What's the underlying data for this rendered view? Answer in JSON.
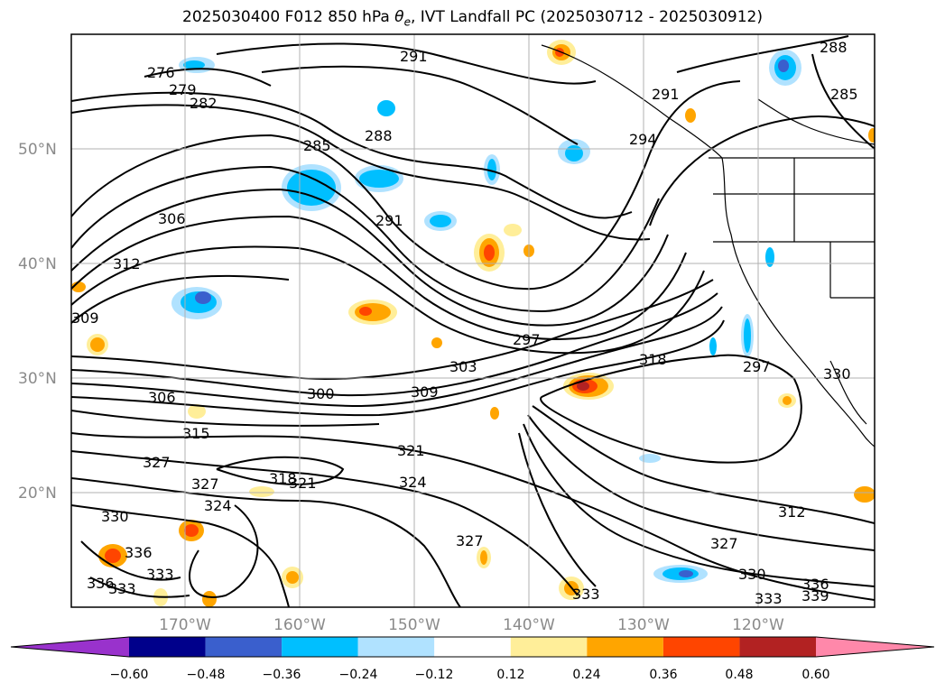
{
  "figure": {
    "title_prefix": "2025030400 F012 850 hPa ",
    "title_symbol": "θ",
    "title_subscript": "e",
    "title_suffix": ", IVT Landfall PC (2025030712 - 2025030912)"
  },
  "map": {
    "lat_labels": [
      "50°N",
      "40°N",
      "30°N",
      "20°N"
    ],
    "lon_labels": [
      "170°W",
      "160°W",
      "150°W",
      "140°W",
      "130°W",
      "120°W"
    ],
    "gridlines": true,
    "land_outline": true
  },
  "contour_labels": [
    "276",
    "279",
    "282",
    "285",
    "288",
    "291",
    "291",
    "294",
    "291",
    "288",
    "285",
    "306",
    "312",
    "309",
    "297",
    "303",
    "309",
    "300",
    "306",
    "315",
    "318",
    "297",
    "327",
    "321",
    "324",
    "327",
    "318",
    "321",
    "324",
    "330",
    "336",
    "333",
    "336",
    "333",
    "327",
    "312",
    "327",
    "330",
    "333",
    "336",
    "339",
    "330",
    "333"
  ],
  "colorbar": {
    "ticks": [
      "−0.60",
      "−0.48",
      "−0.36",
      "−0.24",
      "−0.12",
      "0.12",
      "0.24",
      "0.36",
      "0.48",
      "0.60"
    ],
    "colors": [
      "#9932cc",
      "#00008b",
      "#3a5fcd",
      "#00bfff",
      "#b0e2ff",
      "#ffffff",
      "#ffee99",
      "#ffa500",
      "#ff4500",
      "#b22222",
      "#ff88aa"
    ]
  }
}
